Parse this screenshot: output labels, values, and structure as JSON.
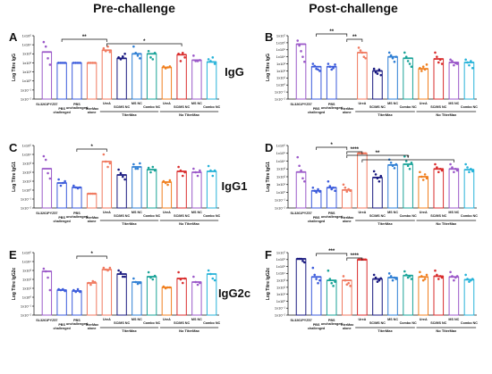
{
  "figure": {
    "col_titles": [
      "Pre-challenge",
      "Post-challenge"
    ],
    "row_labels": [
      "IgG",
      "IgG1",
      "IgG2c"
    ]
  },
  "chart_data": [
    {
      "panel": "A",
      "type": "bar",
      "log_scale": true,
      "ylabel": "Log Titre IgG",
      "yticks": [
        "1x10⁻²",
        "1x10⁻¹",
        "1x10⁰",
        "1x10¹",
        "1x10²",
        "1x10³",
        "1x10⁴",
        "1x10⁵"
      ],
      "ylim": [
        -2,
        5
      ],
      "categories": [
        "SL3261PYZ57",
        "PBS challenged",
        "PBS unchallenged",
        "TiterMax alone",
        "UreA",
        "SC/MS NC",
        "MS NC",
        "Combo NC",
        "UreA",
        "SC/MS NC",
        "MS NC",
        "Combo NC"
      ],
      "groups": [
        {
          "label": "TiterMax",
          "from": 4,
          "to": 7
        },
        {
          "label": "No TiterMax",
          "from": 8,
          "to": 11
        }
      ],
      "colors": [
        "#9b59c9",
        "#3b5bdb",
        "#3b5bdb",
        "#f07a60",
        "#f07a60",
        "#1a1a80",
        "#2f7fd4",
        "#1aa398",
        "#f08020",
        "#d92d2d",
        "#9b59c9",
        "#27b3d9"
      ],
      "values": [
        3.2,
        2.0,
        2.0,
        2.0,
        3.4,
        2.5,
        3.0,
        3.0,
        1.5,
        2.9,
        2.3,
        2.1
      ],
      "points": [
        [
          4.3,
          3.8,
          2.5,
          1.8
        ],
        [
          2.0,
          2.0,
          2.0,
          2.0
        ],
        [
          2.0,
          2.0,
          2.0,
          2.0
        ],
        [
          2.0,
          2.0,
          2.0,
          2.0
        ],
        [
          3.6,
          3.3,
          3.8,
          3.2
        ],
        [
          2.6,
          2.4,
          2.7,
          3.0
        ],
        [
          3.8,
          3.1,
          2.8,
          2.5
        ],
        [
          3.3,
          2.6,
          2.4,
          3.1
        ],
        [
          1.6,
          1.4,
          1.5,
          1.6
        ],
        [
          3.0,
          2.2,
          3.1,
          2.6
        ],
        [
          2.8,
          2.2,
          2.2,
          2.3
        ],
        [
          2.4,
          2.2,
          2.6,
          1.9
        ]
      ],
      "sig": [
        {
          "from": 1,
          "to": 4,
          "label": "**"
        },
        {
          "from": 4,
          "to": 9,
          "label": "*"
        }
      ]
    },
    {
      "panel": "B",
      "type": "bar",
      "log_scale": true,
      "ylabel": "Log Titre IgG",
      "yticks": [
        "1x10⁻²",
        "1x10⁻¹",
        "1x10⁰",
        "1x10¹",
        "1x10²",
        "1x10³",
        "1x10⁴",
        "1x10⁵",
        "1x10⁶",
        "1x10⁷"
      ],
      "ylim": [
        -2,
        7
      ],
      "categories": [
        "SL3261PYZ57",
        "PBS challenged",
        "PBS unchallenged",
        "TiterMax alone",
        "UreA",
        "SC/MS NC",
        "MS NC",
        "Combo NC",
        "UreA",
        "SC/MS NC",
        "MS NC",
        "Combo NC"
      ],
      "groups": [
        {
          "label": "TiterMax",
          "from": 4,
          "to": 7
        },
        {
          "label": "No TiterMax",
          "from": 8,
          "to": 11
        }
      ],
      "colors": [
        "#9b59c9",
        "#3b5bdb",
        "#3b5bdb",
        "#f07a60",
        "#f07a60",
        "#1a1a80",
        "#2f7fd4",
        "#1aa398",
        "#f08020",
        "#d92d2d",
        "#9b59c9",
        "#27b3d9"
      ],
      "values": [
        5.8,
        2.6,
        2.6,
        null,
        4.6,
        2.0,
        4.0,
        3.8,
        2.3,
        3.7,
        3.2,
        3.2
      ],
      "points": [
        [
          6.3,
          5.6,
          4.8,
          4.0,
          3.3
        ],
        [
          3.0,
          2.7,
          2.3,
          2.2,
          2.0
        ],
        [
          3.0,
          2.6,
          2.2,
          2.4,
          2.9
        ],
        [],
        [
          5.3,
          4.9,
          4.6,
          4.0,
          3.8
        ],
        [
          2.3,
          1.8,
          1.6,
          2.2,
          1.4
        ],
        [
          4.6,
          4.2,
          3.8,
          3.3,
          4.0
        ],
        [
          4.6,
          4.0,
          3.4,
          3.0,
          2.6
        ],
        [
          2.4,
          2.0,
          2.6,
          2.2,
          2.9
        ],
        [
          4.6,
          4.0,
          3.2,
          3.6,
          3.0
        ],
        [
          3.6,
          3.4,
          2.8,
          3.1,
          3.0
        ],
        [
          3.6,
          3.2,
          2.8,
          3.4,
          2.4
        ]
      ],
      "sig": [
        {
          "from": 1,
          "to": 3,
          "label": "**"
        },
        {
          "from": 3,
          "to": 4,
          "label": "**"
        }
      ]
    },
    {
      "panel": "C",
      "type": "bar",
      "log_scale": true,
      "ylabel": "Log Titre IgG1",
      "yticks": [
        "1x10⁻²",
        "1x10⁻¹",
        "1x10⁰",
        "1x10¹",
        "1x10²",
        "1x10³",
        "1x10⁴",
        "1x10⁵"
      ],
      "ylim": [
        -2,
        5
      ],
      "categories": [
        "SL3261PYZ57",
        "PBS challenged",
        "PBS unchallenged",
        "TiterMax alone",
        "UreA",
        "SC/MS NC",
        "MS NC",
        "Combo NC",
        "UreA",
        "SC/MS NC",
        "MS NC",
        "Combo NC"
      ],
      "groups": [
        {
          "label": "TiterMax",
          "from": 4,
          "to": 7
        },
        {
          "label": "No TiterMax",
          "from": 8,
          "to": 11
        }
      ],
      "colors": [
        "#9b59c9",
        "#3b5bdb",
        "#3b5bdb",
        "#f07a60",
        "#f07a60",
        "#1a1a80",
        "#2f7fd4",
        "#1aa398",
        "#f08020",
        "#d92d2d",
        "#9b59c9",
        "#27b3d9"
      ],
      "values": [
        2.4,
        0.8,
        0.3,
        -0.4,
        3.2,
        1.7,
        2.6,
        2.3,
        0.9,
        2.1,
        2.0,
        2.1
      ],
      "points": [
        [
          3.8,
          3.4,
          1.9,
          1.3
        ],
        [
          1.2,
          0.5,
          0.8,
          1.0
        ],
        [
          0.5,
          0.3,
          0.2,
          0.3
        ],
        [
          -0.4,
          -0.4,
          -0.4,
          -0.4
        ],
        [
          4.0,
          3.2,
          2.6,
          3.0
        ],
        [
          2.3,
          1.9,
          1.5,
          1.2
        ],
        [
          2.9,
          2.4,
          2.4,
          3.0
        ],
        [
          2.5,
          2.0,
          2.6,
          2.2
        ],
        [
          1.0,
          0.8,
          0.6,
          1.1
        ],
        [
          2.6,
          2.2,
          1.6,
          2.0
        ],
        [
          2.4,
          2.0,
          1.6,
          2.2
        ],
        [
          2.7,
          2.2,
          1.6,
          2.2
        ]
      ],
      "sig": [
        {
          "from": 2,
          "to": 4,
          "label": "*"
        }
      ]
    },
    {
      "panel": "D",
      "type": "bar",
      "log_scale": true,
      "ylabel": "Log Titre IgG1",
      "yticks": [
        "1x10⁻²",
        "1x10⁻¹",
        "1x10⁰",
        "1x10¹",
        "1x10²",
        "1x10³",
        "1x10⁴",
        "1x10⁵",
        "1x10⁶"
      ],
      "ylim": [
        -2,
        6
      ],
      "categories": [
        "SL3261PYZ57",
        "PBS challenged",
        "PBS unchallenged",
        "TiterMax alone",
        "UreA",
        "SC/MS NC",
        "MS NC",
        "Combo NC",
        "UreA",
        "SC/MS NC",
        "MS NC",
        "Combo NC"
      ],
      "groups": [
        {
          "label": "TiterMax",
          "from": 4,
          "to": 7
        },
        {
          "label": "No TiterMax",
          "from": 8,
          "to": 11
        }
      ],
      "colors": [
        "#9b59c9",
        "#3b5bdb",
        "#3b5bdb",
        "#f07a60",
        "#f07a60",
        "#1a1a80",
        "#2f7fd4",
        "#1aa398",
        "#f08020",
        "#d92d2d",
        "#9b59c9",
        "#27b3d9"
      ],
      "values": [
        2.6,
        0.2,
        0.6,
        0.3,
        5.0,
        1.9,
        3.5,
        3.6,
        2.0,
        3.0,
        3.0,
        2.9
      ],
      "points": [
        [
          4.5,
          3.4,
          2.8,
          1.8,
          1.4
        ],
        [
          0.6,
          0.2,
          0.0,
          0.4,
          0.1
        ],
        [
          1.4,
          0.8,
          0.4,
          0.6,
          0.2
        ],
        [
          1.0,
          0.6,
          0.1,
          0.4,
          0.2
        ],
        [
          5.0,
          5.0,
          5.0,
          5.0,
          5.0
        ],
        [
          2.7,
          2.3,
          1.8,
          1.4,
          2.1
        ],
        [
          4.2,
          3.8,
          3.4,
          3.1,
          3.6
        ],
        [
          4.6,
          4.0,
          3.4,
          3.0,
          3.8
        ],
        [
          2.6,
          2.0,
          1.6,
          2.3,
          1.8
        ],
        [
          3.6,
          3.2,
          2.6,
          3.0,
          2.8
        ],
        [
          3.6,
          3.2,
          2.6,
          3.0,
          2.8
        ],
        [
          3.6,
          3.2,
          2.6,
          3.0,
          2.7
        ]
      ],
      "sig": [
        {
          "from": 1,
          "to": 3,
          "label": "*"
        },
        {
          "from": 3,
          "to": 4,
          "label": "****"
        },
        {
          "from": 3,
          "to": 7,
          "label": "**"
        },
        {
          "from": 4,
          "to": 10,
          "label": "*"
        }
      ]
    },
    {
      "panel": "E",
      "type": "bar",
      "log_scale": true,
      "ylabel": "Log Titre IgG2c",
      "yticks": [
        "1x10⁻²",
        "1x10⁻¹",
        "1x10⁰",
        "1x10¹",
        "1x10²",
        "1x10³",
        "1x10⁴",
        "1x10⁵"
      ],
      "ylim": [
        -2,
        5
      ],
      "categories": [
        "SL3261PYZ57",
        "PBS challenged",
        "PBS unchallenged",
        "TiterMax alone",
        "UreA",
        "SC/MS NC",
        "MS NC",
        "Combo NC",
        "UreA",
        "SC/MS NC",
        "MS NC",
        "Combo NC"
      ],
      "groups": [
        {
          "label": "TiterMax",
          "from": 4,
          "to": 7
        },
        {
          "label": "No TiterMax",
          "from": 8,
          "to": 11
        }
      ],
      "colors": [
        "#9b59c9",
        "#3b5bdb",
        "#3b5bdb",
        "#f07a60",
        "#f07a60",
        "#1a1a80",
        "#2f7fd4",
        "#1aa398",
        "#f08020",
        "#d92d2d",
        "#9b59c9",
        "#27b3d9"
      ],
      "values": [
        2.9,
        0.8,
        0.7,
        1.6,
        3.1,
        2.6,
        1.7,
        2.3,
        1.1,
        2.1,
        1.7,
        2.6
      ],
      "points": [
        [
          3.2,
          2.9,
          2.2,
          0.8
        ],
        [
          0.9,
          0.8,
          0.9,
          0.7
        ],
        [
          0.8,
          0.6,
          0.9,
          0.6
        ],
        [
          1.6,
          1.4,
          1.8,
          1.7
        ],
        [
          3.3,
          3.1,
          3.0,
          3.3
        ],
        [
          3.0,
          2.8,
          2.3,
          2.3
        ],
        [
          2.1,
          1.7,
          1.5,
          1.6
        ],
        [
          2.8,
          2.2,
          2.0,
          2.4
        ],
        [
          1.2,
          1.0,
          1.1,
          1.1
        ],
        [
          2.8,
          2.0,
          1.6,
          2.1
        ],
        [
          2.3,
          1.7,
          1.4,
          1.6
        ],
        [
          3.0,
          2.6,
          2.1,
          1.9
        ]
      ],
      "sig": [
        {
          "from": 2,
          "to": 4,
          "label": "*"
        }
      ]
    },
    {
      "panel": "F",
      "type": "bar",
      "log_scale": true,
      "ylabel": "Log Titre IgG2c",
      "yticks": [
        "1x10⁻²",
        "1x10⁻¹",
        "1x10⁰",
        "1x10¹",
        "1x10²",
        "1x10³",
        "1x10⁴",
        "1x10⁵",
        "1x10⁶",
        "1x10⁷"
      ],
      "ylim": [
        -2,
        7
      ],
      "categories": [
        "SL3261PYZ57",
        "PBS challenged",
        "PBS unchallenged",
        "TiterMax alone",
        "UreA",
        "SC/MS NC",
        "MS NC",
        "Combo NC",
        "UreA",
        "SC/MS NC",
        "MS NC",
        "Combo NC"
      ],
      "groups": [
        {
          "label": "TiterMax",
          "from": 4,
          "to": 7
        },
        {
          "label": "No TiterMax",
          "from": 8,
          "to": 11
        }
      ],
      "colors": [
        "#1a1a80",
        "#3b5bdb",
        "#1aa398",
        "#f07a60",
        "#d92d2d",
        "#1a1a80",
        "#2f7fd4",
        "#1aa398",
        "#f08020",
        "#d92d2d",
        "#9b59c9",
        "#27b3d9"
      ],
      "values": [
        6.1,
        3.5,
        3.0,
        3.0,
        6.0,
        3.2,
        3.4,
        3.7,
        3.5,
        3.6,
        3.5,
        3.1
      ],
      "points": [
        [
          6.1,
          6.1,
          6.1,
          5.8,
          5.6
        ],
        [
          4.8,
          3.8,
          3.2,
          2.6,
          3.0
        ],
        [
          4.4,
          3.2,
          2.6,
          2.2,
          2.8
        ],
        [
          3.6,
          3.0,
          2.4,
          2.6,
          2.2
        ],
        [
          6.0,
          6.0,
          6.0,
          6.0,
          6.0
        ],
        [
          3.8,
          3.4,
          2.8,
          3.0,
          3.3
        ],
        [
          4.0,
          3.6,
          3.0,
          3.4,
          3.2
        ],
        [
          4.3,
          3.8,
          3.4,
          3.6,
          3.2
        ],
        [
          4.2,
          3.6,
          3.0,
          3.2,
          3.8
        ],
        [
          4.4,
          3.8,
          3.2,
          3.6,
          3.4
        ],
        [
          4.2,
          3.6,
          3.0,
          3.4,
          3.6
        ],
        [
          3.8,
          3.2,
          2.8,
          3.0,
          3.2
        ]
      ],
      "sig": [
        {
          "from": 1,
          "to": 3,
          "label": "***"
        },
        {
          "from": 3,
          "to": 4,
          "label": "****"
        }
      ]
    }
  ]
}
